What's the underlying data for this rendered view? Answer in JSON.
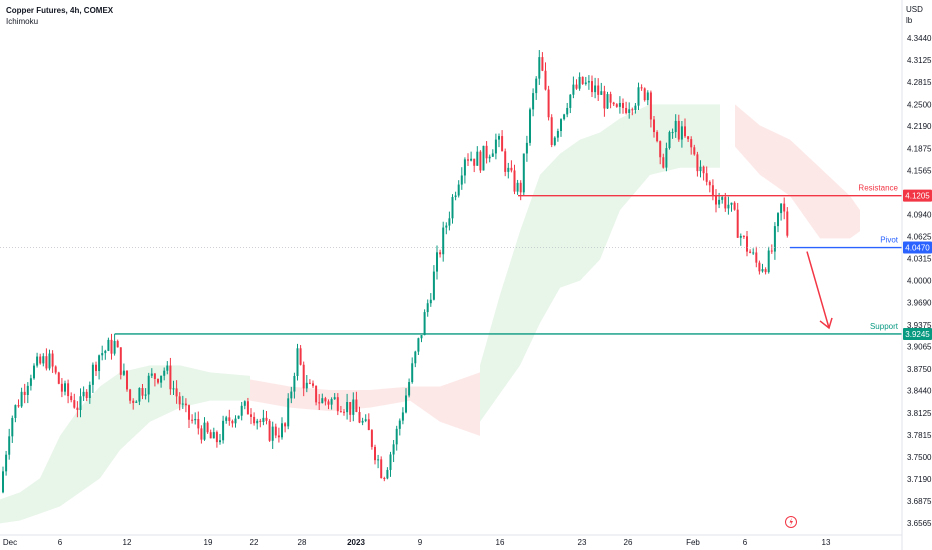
{
  "header": {
    "title": "Copper Futures, 4h, COMEX",
    "indicator": "Ichimoku"
  },
  "currency": "USD",
  "unit": "lb",
  "chart_data": {
    "type": "candlestick",
    "symbol": "Copper Futures",
    "interval": "4h",
    "exchange": "COMEX",
    "ylim": [
      3.6565,
      4.344
    ],
    "y_ticks": [
      "4.3440",
      "4.3125",
      "4.2815",
      "4.2500",
      "4.2190",
      "4.1875",
      "4.1565",
      "4.0940",
      "4.0625",
      "4.0315",
      "4.0000",
      "3.9690",
      "3.9375",
      "3.9065",
      "3.8750",
      "3.8440",
      "3.8125",
      "3.7815",
      "3.7500",
      "3.7190",
      "3.6875",
      "3.6565"
    ],
    "x_ticks": [
      "Dec",
      "6",
      "12",
      "19",
      "22",
      "28",
      "2023",
      "9",
      "16",
      "23",
      "26",
      "Feb",
      "6",
      "13"
    ],
    "levels": [
      {
        "name": "Resistance",
        "value": 4.1205,
        "color": "#f23645"
      },
      {
        "name": "Pivot",
        "value": 4.047,
        "color": "#2962ff"
      },
      {
        "name": "Support",
        "value": 3.9245,
        "color": "#089981"
      }
    ],
    "last_price": 4.047,
    "projection": "down",
    "colors": {
      "up": "#089981",
      "down": "#f23645",
      "cloud_bull": "#e8f5e9",
      "cloud_bear": "#fde8e8"
    }
  }
}
